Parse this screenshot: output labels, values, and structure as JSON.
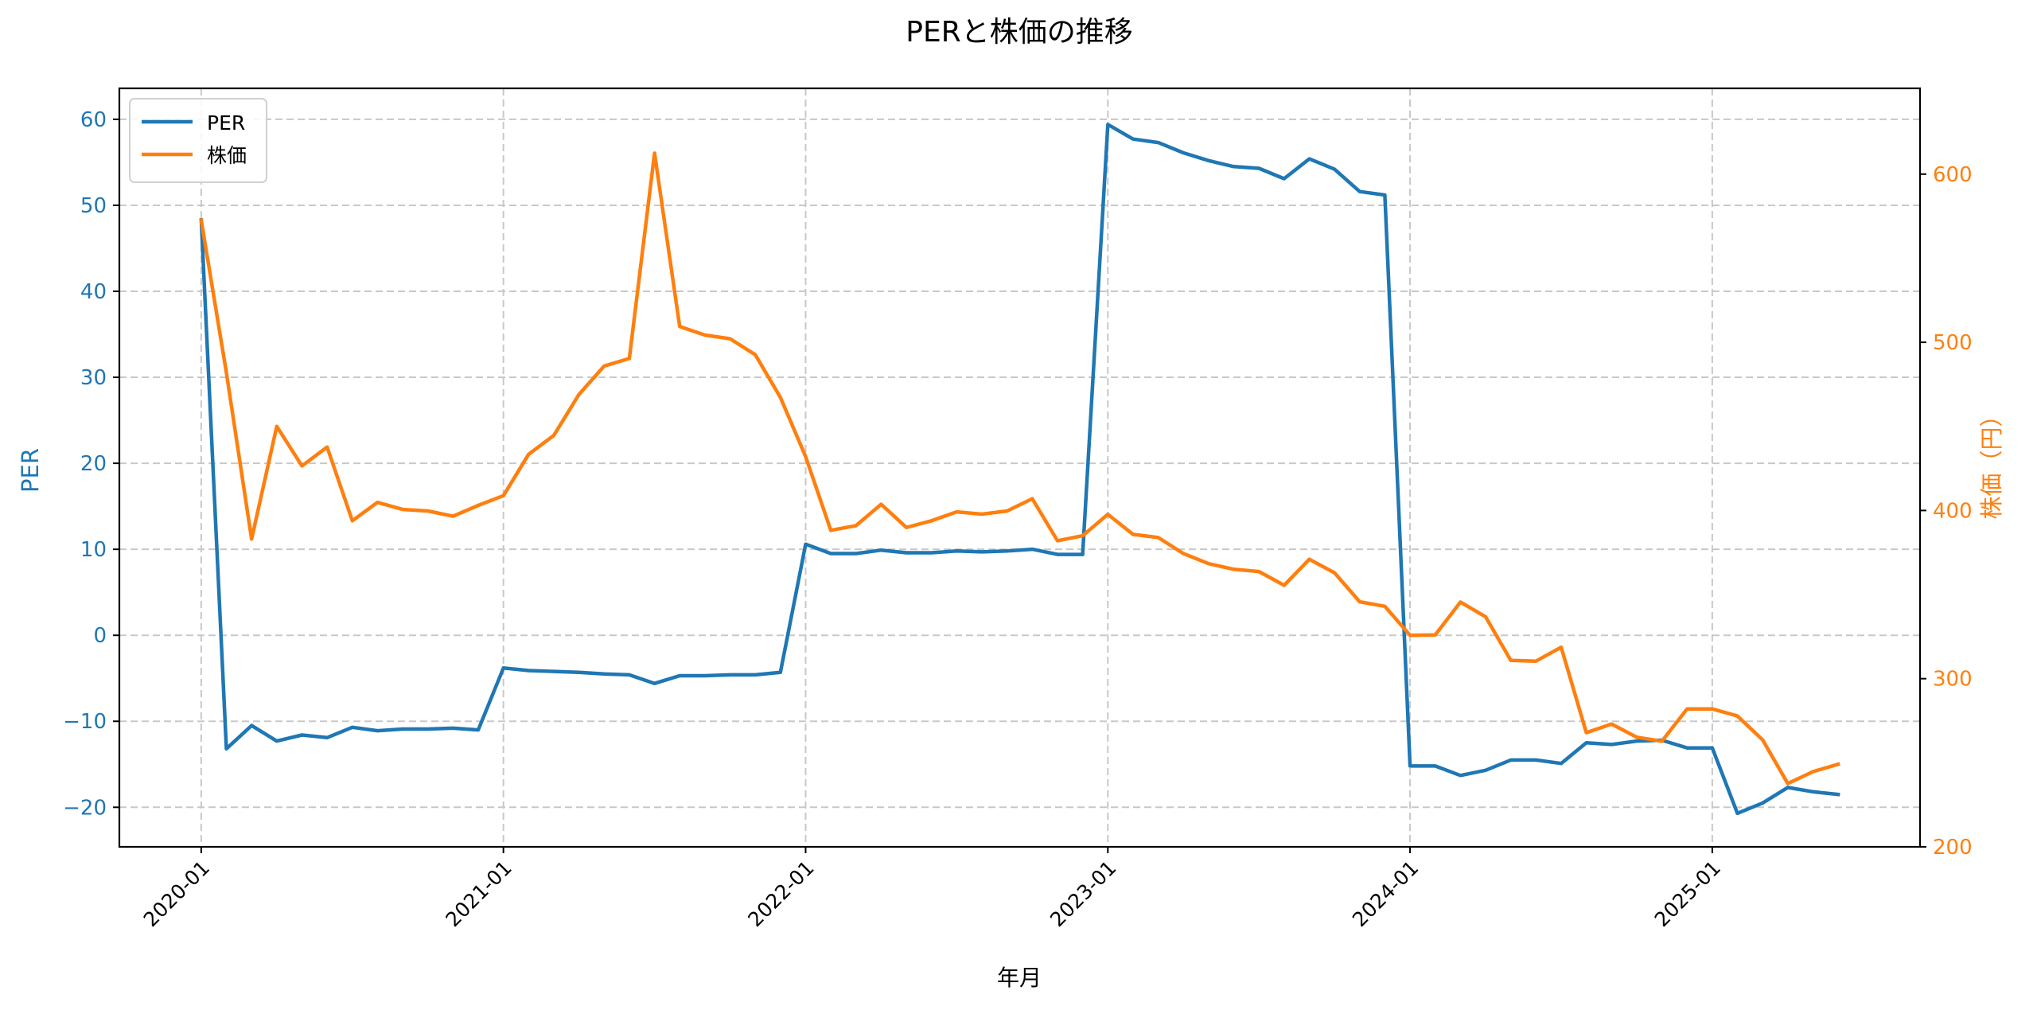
{
  "chart_data": {
    "type": "line",
    "title": "PERと株価の推移",
    "xlabel": "年月",
    "ylabel_left": "PER",
    "ylabel_right": "株価（円）",
    "grid": true,
    "legend_position": "top-left",
    "x_ticks": [
      "2020-01",
      "2021-01",
      "2022-01",
      "2023-01",
      "2024-01",
      "2025-01"
    ],
    "x_tick_month_index": [
      0,
      12,
      24,
      36,
      48,
      60
    ],
    "x_start": "2020-01",
    "x_end": "2025-06",
    "y_left_ticks": [
      60,
      50,
      40,
      30,
      20,
      10,
      0,
      -10,
      -20
    ],
    "y_left_tick_labels": [
      "60",
      "50",
      "40",
      "30",
      "20",
      "10",
      "0",
      "−10",
      "−20"
    ],
    "y_left_lim": [
      -24.6,
      63.6
    ],
    "y_right_ticks": [
      600,
      500,
      400,
      300,
      200
    ],
    "y_right_tick_labels": [
      "600",
      "500",
      "400",
      "300",
      "200"
    ],
    "y_right_lim": [
      200,
      651
    ],
    "series": [
      {
        "name": "PER",
        "axis": "left",
        "color": "#1f77b4",
        "values": [
          48.3,
          -13.2,
          -10.5,
          -12.3,
          -11.6,
          -11.9,
          -10.7,
          -11.1,
          -10.9,
          -10.9,
          -10.8,
          -11.0,
          -3.8,
          -4.1,
          -4.2,
          -4.3,
          -4.5,
          -4.6,
          -5.6,
          -4.7,
          -4.7,
          -4.6,
          -4.6,
          -4.3,
          10.6,
          9.5,
          9.5,
          9.9,
          9.6,
          9.6,
          9.8,
          9.7,
          9.8,
          10.0,
          9.4,
          9.4,
          59.4,
          57.7,
          57.3,
          56.1,
          55.2,
          54.5,
          54.3,
          53.1,
          55.4,
          54.2,
          51.6,
          51.2,
          -15.2,
          -15.2,
          -16.3,
          -15.7,
          -14.5,
          -14.5,
          -14.9,
          -12.5,
          -12.7,
          -12.3,
          -12.2,
          -13.1,
          -13.1,
          -20.7,
          -19.5,
          -17.7,
          -18.2,
          -18.5
        ]
      },
      {
        "name": "株価",
        "axis": "right",
        "color": "#ff7f0e",
        "values": [
          572.6,
          482,
          383,
          450,
          426.5,
          437.7,
          393.9,
          404.8,
          400.6,
          399.7,
          396.6,
          403,
          408.8,
          433.4,
          444.6,
          469,
          485.9,
          490.4,
          612.5,
          509.4,
          504.3,
          502.1,
          492.6,
          467.2,
          432,
          388.2,
          391,
          403.7,
          389.9,
          393.9,
          399.2,
          397.8,
          399.7,
          407,
          382,
          385,
          397.7,
          385.8,
          383.9,
          374.4,
          368.4,
          365,
          363.7,
          355.5,
          371,
          363,
          345.7,
          343,
          325.8,
          326,
          345.5,
          336.8,
          310.9,
          310.4,
          318.7,
          267.9,
          273,
          265.2,
          262.8,
          282,
          282,
          277.8,
          263.6,
          237.6,
          244.7,
          249.1
        ]
      }
    ]
  }
}
